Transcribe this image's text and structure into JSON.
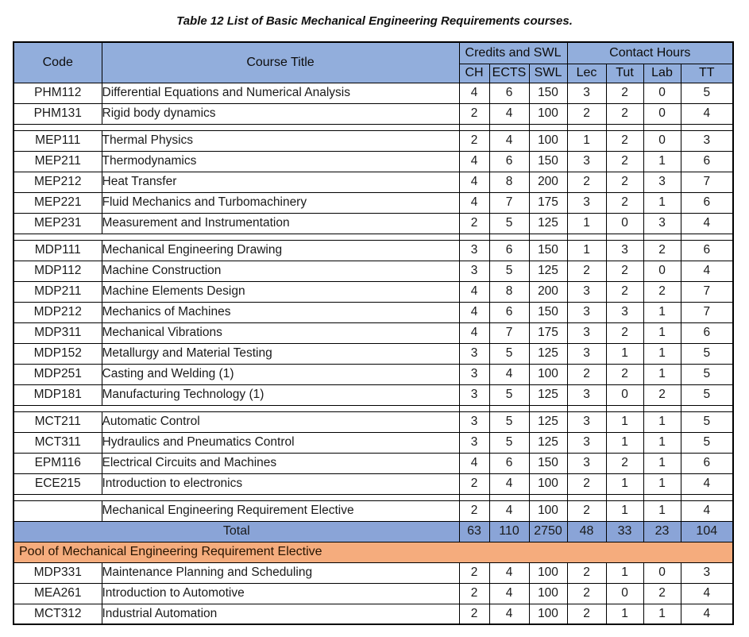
{
  "caption": "Table 12 List of Basic Mechanical Engineering Requirements courses.",
  "colors": {
    "header_blue": "#92aedc",
    "total_blue": "#8aa4d7",
    "band_orange": "#f5ac7d",
    "border": "#000000"
  },
  "table": {
    "header": {
      "code": "Code",
      "course_title": "Course Title",
      "credits_group": "Credits and SWL",
      "contact_group": "Contact Hours",
      "sub": [
        "CH",
        "ECTS",
        "SWL",
        "Lec",
        "Tut",
        "Lab",
        "TT"
      ]
    },
    "sections": [
      {
        "type": "rows",
        "rows": [
          [
            "PHM112",
            "Differential Equations and Numerical Analysis",
            "4",
            "6",
            "150",
            "3",
            "2",
            "0",
            "5"
          ],
          [
            "PHM131",
            "Rigid body dynamics",
            "2",
            "4",
            "100",
            "2",
            "2",
            "0",
            "4"
          ]
        ]
      },
      {
        "type": "separator"
      },
      {
        "type": "rows",
        "rows": [
          [
            "MEP111",
            "Thermal Physics",
            "2",
            "4",
            "100",
            "1",
            "2",
            "0",
            "3"
          ],
          [
            "MEP211",
            "Thermodynamics",
            "4",
            "6",
            "150",
            "3",
            "2",
            "1",
            "6"
          ],
          [
            "MEP212",
            "Heat Transfer",
            "4",
            "8",
            "200",
            "2",
            "2",
            "3",
            "7"
          ],
          [
            "MEP221",
            "Fluid Mechanics and Turbomachinery",
            "4",
            "7",
            "175",
            "3",
            "2",
            "1",
            "6"
          ],
          [
            "MEP231",
            "Measurement and Instrumentation",
            "2",
            "5",
            "125",
            "1",
            "0",
            "3",
            "4"
          ]
        ]
      },
      {
        "type": "separator"
      },
      {
        "type": "rows",
        "rows": [
          [
            "MDP111",
            "Mechanical Engineering Drawing",
            "3",
            "6",
            "150",
            "1",
            "3",
            "2",
            "6"
          ],
          [
            "MDP112",
            "Machine Construction",
            "3",
            "5",
            "125",
            "2",
            "2",
            "0",
            "4"
          ],
          [
            "MDP211",
            "Machine Elements Design",
            "4",
            "8",
            "200",
            "3",
            "2",
            "2",
            "7"
          ],
          [
            "MDP212",
            "Mechanics of Machines",
            "4",
            "6",
            "150",
            "3",
            "3",
            "1",
            "7"
          ],
          [
            "MDP311",
            "Mechanical Vibrations",
            "4",
            "7",
            "175",
            "3",
            "2",
            "1",
            "6"
          ],
          [
            "MDP152",
            "Metallurgy and Material Testing",
            "3",
            "5",
            "125",
            "3",
            "1",
            "1",
            "5"
          ],
          [
            "MDP251",
            "Casting and Welding (1)",
            "3",
            "4",
            "100",
            "2",
            "2",
            "1",
            "5"
          ],
          [
            "MDP181",
            "Manufacturing Technology (1)",
            "3",
            "5",
            "125",
            "3",
            "0",
            "2",
            "5"
          ]
        ]
      },
      {
        "type": "separator"
      },
      {
        "type": "rows",
        "rows": [
          [
            "MCT211",
            "Automatic Control",
            "3",
            "5",
            "125",
            "3",
            "1",
            "1",
            "5"
          ],
          [
            "MCT311",
            "Hydraulics and Pneumatics Control",
            "3",
            "5",
            "125",
            "3",
            "1",
            "1",
            "5"
          ],
          [
            "EPM116",
            "Electrical Circuits and Machines",
            "4",
            "6",
            "150",
            "3",
            "2",
            "1",
            "6"
          ],
          [
            "ECE215",
            "Introduction to electronics",
            "2",
            "4",
            "100",
            "2",
            "1",
            "1",
            "4"
          ]
        ]
      },
      {
        "type": "separator"
      },
      {
        "type": "rows",
        "rows": [
          [
            "",
            "Mechanical Engineering Requirement Elective",
            "2",
            "4",
            "100",
            "2",
            "1",
            "1",
            "4"
          ]
        ]
      },
      {
        "type": "total",
        "label": "Total",
        "values": [
          "63",
          "110",
          "2750",
          "48",
          "33",
          "23",
          "104"
        ]
      },
      {
        "type": "band",
        "label": "Pool of Mechanical Engineering Requirement Elective"
      },
      {
        "type": "rows",
        "rows": [
          [
            "MDP331",
            "Maintenance Planning and Scheduling",
            "2",
            "4",
            "100",
            "2",
            "1",
            "0",
            "3"
          ],
          [
            "MEA261",
            "Introduction to Automotive",
            "2",
            "4",
            "100",
            "2",
            "0",
            "2",
            "4"
          ],
          [
            "MCT312",
            "Industrial Automation",
            "2",
            "4",
            "100",
            "2",
            "1",
            "1",
            "4"
          ]
        ]
      }
    ]
  }
}
